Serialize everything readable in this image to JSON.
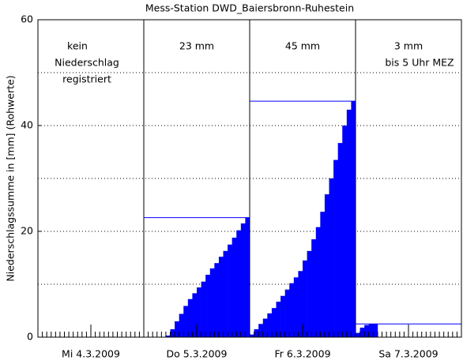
{
  "chart_data": {
    "type": "bar",
    "title": "Mess-Station DWD_Baiersbronn-Ruhestein",
    "y_label": "Niederschlagssumme in [mm] (Rohwerte)",
    "color": "#0000ff",
    "x": [
      0,
      1,
      2,
      3,
      4,
      5,
      6,
      7,
      8,
      9,
      10,
      11,
      12,
      13,
      14,
      15,
      16,
      17,
      18,
      19,
      20,
      21,
      22,
      23,
      24,
      25,
      26,
      27,
      28,
      29,
      30,
      31,
      32,
      33,
      34,
      35,
      36,
      37,
      38,
      39,
      40,
      41,
      42,
      43,
      44,
      45,
      46,
      47,
      48,
      49,
      50,
      51,
      52,
      53,
      54,
      55,
      56,
      57,
      58,
      59,
      60,
      61,
      62,
      63,
      64,
      65,
      66,
      67,
      68,
      69,
      70,
      71,
      72,
      73,
      74,
      75,
      76,
      77,
      78,
      79,
      80,
      81,
      82,
      83,
      84,
      85,
      86,
      87,
      88,
      89,
      90,
      91,
      92,
      93,
      94,
      95
    ],
    "values": [
      0,
      0,
      0,
      0,
      0,
      0,
      0,
      0,
      0,
      0,
      0,
      0,
      0,
      0,
      0,
      0,
      0,
      0,
      0,
      0,
      0,
      0,
      0,
      0,
      0,
      0,
      0,
      0,
      0,
      0.3,
      1.5,
      3,
      4.4,
      5.9,
      7.2,
      8.3,
      9.4,
      10.5,
      11.8,
      13,
      14,
      15.2,
      16.3,
      17.5,
      18.8,
      20.2,
      21.5,
      22.6,
      0.5,
      1.5,
      2.5,
      3.5,
      4.5,
      5.5,
      6.7,
      7.8,
      9,
      10.2,
      11.3,
      12.5,
      14.5,
      16.3,
      18.5,
      20.8,
      23.7,
      27,
      30,
      33.5,
      36.7,
      40,
      43,
      44.6,
      0.8,
      1.8,
      2.3,
      2.5,
      2.5,
      null,
      null,
      null,
      null,
      null,
      null,
      null,
      null,
      null,
      null,
      null,
      null,
      null,
      null,
      null,
      null,
      null,
      null,
      null
    ],
    "xlim": [
      0,
      96
    ],
    "xticks": [
      {
        "value": 12,
        "label": "Mi 4.3.2009"
      },
      {
        "value": 36,
        "label": "Do 5.3.2009"
      },
      {
        "value": 60,
        "label": "Fr 6.3.2009"
      },
      {
        "value": 84,
        "label": "Sa 7.3.2009"
      }
    ],
    "ylim": [
      0,
      60
    ],
    "yticks": [
      0,
      20,
      40,
      60
    ],
    "ygrid": [
      10,
      20,
      30,
      40,
      50
    ],
    "annotations": [
      {
        "lines": [
          "kein",
          "Niederschlag",
          "registriert"
        ]
      },
      {
        "lines": [
          "23 mm"
        ]
      },
      {
        "lines": [
          "45 mm"
        ]
      },
      {
        "lines": [
          "3 mm",
          "bis 5 Uhr MEZ"
        ]
      }
    ]
  }
}
